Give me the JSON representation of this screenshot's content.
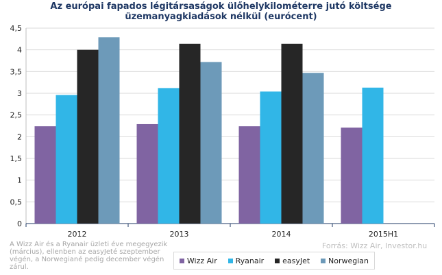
{
  "chart_data": {
    "type": "bar",
    "title_line1": "Az európai fapados légitársaságok ülőhelykilométerre  jutó költsége",
    "title_line2": "üzemanyagkiadások nélkül (eurócent)",
    "categories": [
      "2012",
      "2013",
      "2014",
      "2015H1"
    ],
    "series": [
      {
        "name": "Wizz Air",
        "color": "#8064a2",
        "values": [
          2.24,
          2.29,
          2.24,
          2.21
        ]
      },
      {
        "name": "Ryanair",
        "color": "#31b6e7",
        "values": [
          2.96,
          3.12,
          3.04,
          3.13
        ]
      },
      {
        "name": "easyJet",
        "color": "#262626",
        "values": [
          4.0,
          4.14,
          4.14,
          null
        ]
      },
      {
        "name": "Norwegian",
        "color": "#6d9ab9",
        "values": [
          4.29,
          3.72,
          3.47,
          null
        ]
      }
    ],
    "ylim": [
      0,
      4.5
    ],
    "yticks": [
      "0",
      "0,5",
      "1",
      "1,5",
      "2",
      "2,5",
      "3",
      "3,5",
      "4",
      "4,5"
    ],
    "grid": true,
    "legend_position": "bottom"
  },
  "note": "A Wizz Air és a Ryanair üzleti éve megegyezik (március), ellenben az easyJeté szeptember végén, a Norwegiané pedig december végén zárul.",
  "source": "Forrás: Wizz Air, Investor.hu"
}
